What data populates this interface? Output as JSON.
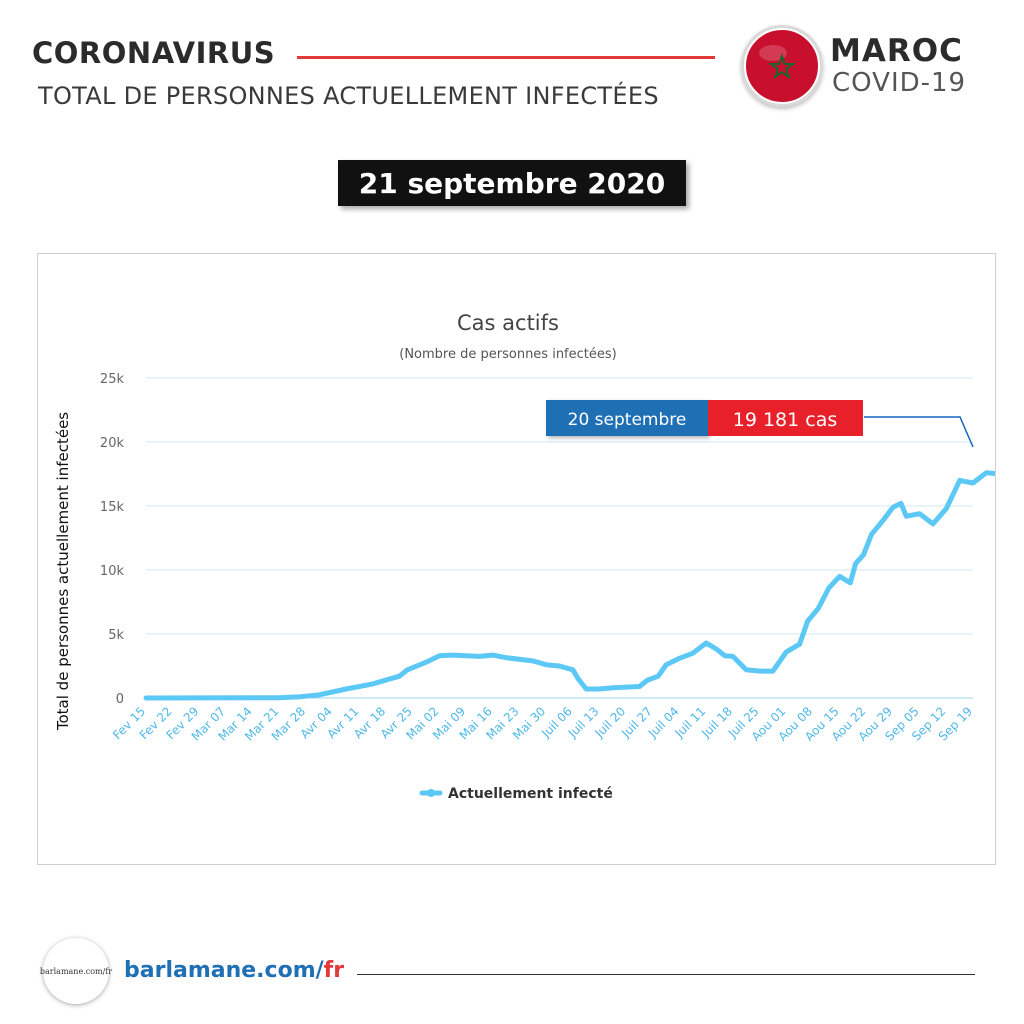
{
  "header": {
    "title": "CORONAVIRUS",
    "subtitle": "TOTAL DE PERSONNES ACTUELLEMENT INFECTÉES",
    "country": "MAROC",
    "tag": "COVID-19"
  },
  "date_banner": "21 septembre 2020",
  "colors": {
    "line": "#5bc8f5",
    "accent_red": "#e8202a",
    "callout_blue": "#1f6fb5",
    "marker_blue": "#1565c0"
  },
  "callout": {
    "date": "20 septembre",
    "value": "19 181 cas"
  },
  "chart_data": {
    "type": "line",
    "title": "Cas actifs",
    "subtitle": "(Nombre de personnes infectées)",
    "ylabel": "Total de personnes actuellement infectées",
    "xlabel": "",
    "ylim": [
      0,
      25000
    ],
    "yticks": [
      "0",
      "5k",
      "10k",
      "15k",
      "20k",
      "25k"
    ],
    "grid": true,
    "legend_position": "bottom-center",
    "categories": [
      "Fev 15",
      "Fev 22",
      "Fev 29",
      "Mar 07",
      "Mar 14",
      "Mar 21",
      "Mar 28",
      "Avr 04",
      "Avr 11",
      "Avr 18",
      "Avr 25",
      "Mai 02",
      "Mai 09",
      "Mai 16",
      "Mai 23",
      "Mai 30",
      "Juil 06",
      "Juil 13",
      "Juil 20",
      "Juil 27",
      "Juil 04",
      "Juil 11",
      "Juil 18",
      "Juil 25",
      "Aou 01",
      "Aou 08",
      "Aou 15",
      "Aou 22",
      "Aou 29",
      "Sep 05",
      "Sep 12",
      "Sep 19"
    ],
    "series": [
      {
        "name": "Actuellement infecté",
        "points": [
          [
            0,
            0
          ],
          [
            5,
            20
          ],
          [
            5.8,
            100
          ],
          [
            6.5,
            250
          ],
          [
            7.5,
            700
          ],
          [
            8.5,
            1100
          ],
          [
            9.5,
            1700
          ],
          [
            9.8,
            2200
          ],
          [
            10.5,
            2800
          ],
          [
            11,
            3300
          ],
          [
            11.5,
            3350
          ],
          [
            12.5,
            3250
          ],
          [
            13,
            3350
          ],
          [
            13.5,
            3150
          ],
          [
            14.5,
            2900
          ],
          [
            15,
            2600
          ],
          [
            15.5,
            2500
          ],
          [
            16,
            2200
          ],
          [
            16.2,
            1500
          ],
          [
            16.5,
            700
          ],
          [
            17,
            700
          ],
          [
            17.5,
            800
          ],
          [
            18,
            850
          ],
          [
            18.5,
            900
          ],
          [
            18.8,
            1400
          ],
          [
            19.2,
            1700
          ],
          [
            19.5,
            2600
          ],
          [
            20,
            3100
          ],
          [
            20.5,
            3500
          ],
          [
            21,
            4300
          ],
          [
            21.4,
            3800
          ],
          [
            21.7,
            3300
          ],
          [
            22,
            3250
          ],
          [
            22.5,
            2200
          ],
          [
            23,
            2100
          ],
          [
            23.5,
            2100
          ],
          [
            24,
            3600
          ],
          [
            24.5,
            4200
          ],
          [
            24.8,
            6000
          ],
          [
            25.2,
            7000
          ],
          [
            25.6,
            8600
          ],
          [
            26,
            9500
          ],
          [
            26.4,
            9000
          ],
          [
            26.6,
            10500
          ],
          [
            26.9,
            11200
          ],
          [
            27.2,
            12800
          ],
          [
            27.6,
            13800
          ],
          [
            28,
            14900
          ],
          [
            28.3,
            15200
          ],
          [
            28.5,
            14200
          ],
          [
            29,
            14400
          ],
          [
            29.5,
            13600
          ],
          [
            30,
            14800
          ],
          [
            30.5,
            17000
          ],
          [
            31,
            16800
          ],
          [
            31.5,
            17600
          ],
          [
            32,
            17500
          ],
          [
            32.5,
            19181
          ]
        ]
      }
    ]
  },
  "footer": {
    "site": "barlamane.com/",
    "site_suffix": "fr",
    "logo_text": "barlamane.com/fr"
  }
}
